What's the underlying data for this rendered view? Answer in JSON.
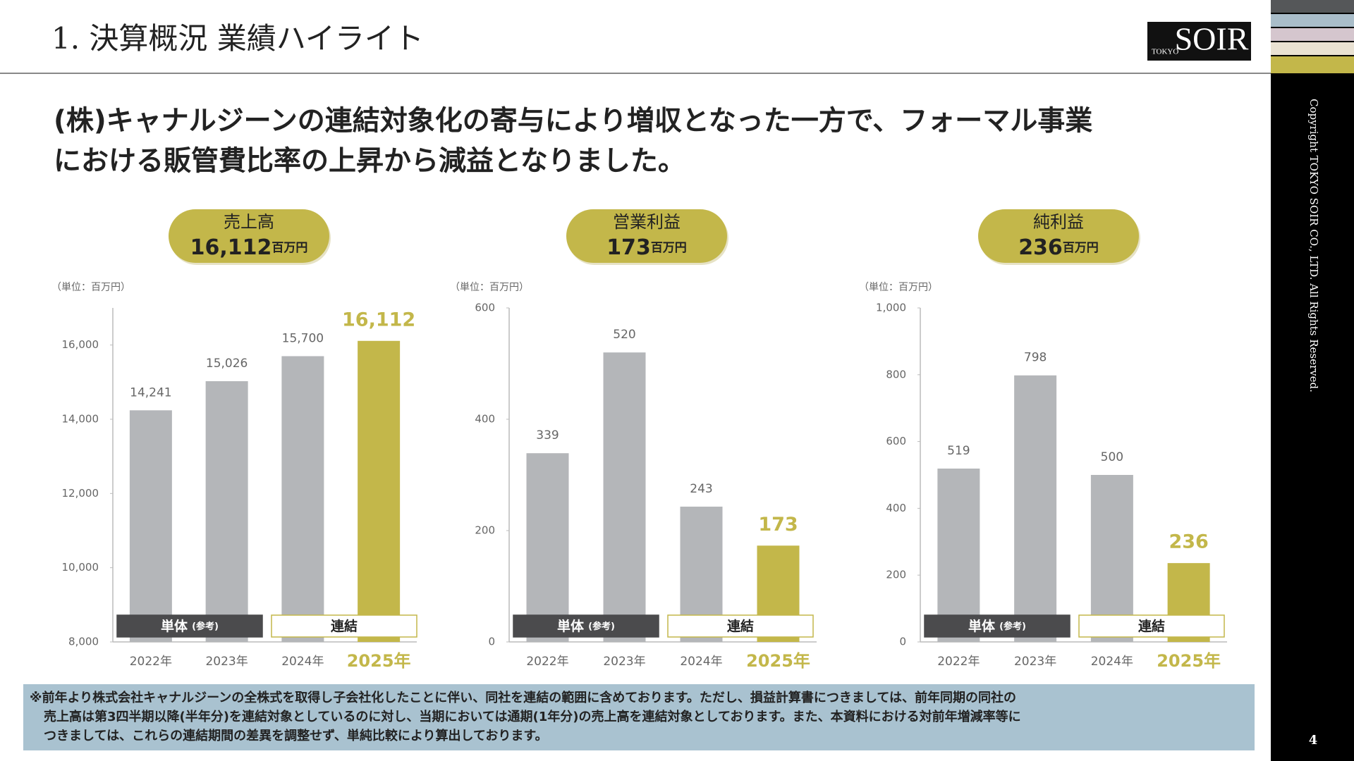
{
  "header": {
    "title": "1. 決算概況 業績ハイライト",
    "logo_main": "SOIR",
    "logo_sub": "TOKYO"
  },
  "headline": [
    "(株)キャナルジーンの連結対象化の寄与により増収となった一方で、フォーマル事業",
    "における販管費比率の上昇から減益となりました。"
  ],
  "chart_data": [
    {
      "type": "bar",
      "title": "売上高",
      "summary_value": "16,112",
      "summary_unit": "百万円",
      "unit_label": "（単位：百万円）",
      "categories": [
        "2022年",
        "2023年",
        "2024年",
        "2025年"
      ],
      "values": [
        14241,
        15026,
        15700,
        16112
      ],
      "value_labels": [
        "14,241",
        "15,026",
        "15,700",
        "16,112"
      ],
      "colors": [
        "#b4b6b9",
        "#b4b6b9",
        "#b4b6b9",
        "#c3b74a"
      ],
      "highlight_color": "#c3b74a",
      "ylim": [
        8000,
        17000
      ],
      "yticks": [
        {
          "value": 8000,
          "label": "8,000"
        },
        {
          "value": 10000,
          "label": "10,000"
        },
        {
          "value": 12000,
          "label": "12,000"
        },
        {
          "value": 14000,
          "label": "14,000"
        },
        {
          "value": 16000,
          "label": "16,000"
        }
      ],
      "legend": [
        {
          "name": "単体",
          "note": "(参考)",
          "color": "#4b4b4d"
        },
        {
          "name": "連結",
          "color": "#c3b74a"
        }
      ]
    },
    {
      "type": "bar",
      "title": "営業利益",
      "summary_value": "173",
      "summary_unit": "百万円",
      "unit_label": "（単位：百万円）",
      "categories": [
        "2022年",
        "2023年",
        "2024年",
        "2025年"
      ],
      "values": [
        339,
        520,
        243,
        173
      ],
      "colors": [
        "#b4b6b9",
        "#b4b6b9",
        "#b4b6b9",
        "#c3b74a"
      ],
      "highlight_color": "#c3b74a",
      "ylim": [
        0,
        600
      ],
      "yticks": [
        0,
        200,
        400,
        600
      ],
      "legend": [
        {
          "name": "単体",
          "note": "(参考)",
          "color": "#4b4b4d"
        },
        {
          "name": "連結",
          "color": "#c3b74a"
        }
      ]
    },
    {
      "type": "bar",
      "title": "純利益",
      "summary_value": "236",
      "summary_unit": "百万円",
      "unit_label": "（単位：百万円）",
      "categories": [
        "2022年",
        "2023年",
        "2024年",
        "2025年"
      ],
      "values": [
        519,
        798,
        500,
        236
      ],
      "colors": [
        "#b4b6b9",
        "#b4b6b9",
        "#b4b6b9",
        "#c3b74a"
      ],
      "highlight_color": "#c3b74a",
      "ylim": [
        0,
        1000
      ],
      "yticks": [
        0,
        200,
        400,
        600,
        800,
        {
          "value": 1000,
          "label": "1,000"
        }
      ],
      "legend": [
        {
          "name": "単体",
          "note": "(参考)",
          "color": "#4b4b4d"
        },
        {
          "name": "連結",
          "color": "#c3b74a"
        }
      ]
    }
  ],
  "footnote": [
    "※前年より株式会社キャナルジーンの全株式を取得し子会社化したことに伴い、同社を連結の範囲に含めております。ただし、損益計算書につきましては、前年同期の同社の",
    "売上高は第3四半期以降(半年分)を連結対象としているのに対し、当期においては通期(1年分)の売上高を連結対象としております。また、本資料における対前年増減率等に",
    "つきましては、これらの連結期間の差異を調整せず、単純比較により算出しております。"
  ],
  "copyright": "Copyright TOKYO SOIR CO., LTD. All Rights Reserved.",
  "page_number": "4"
}
